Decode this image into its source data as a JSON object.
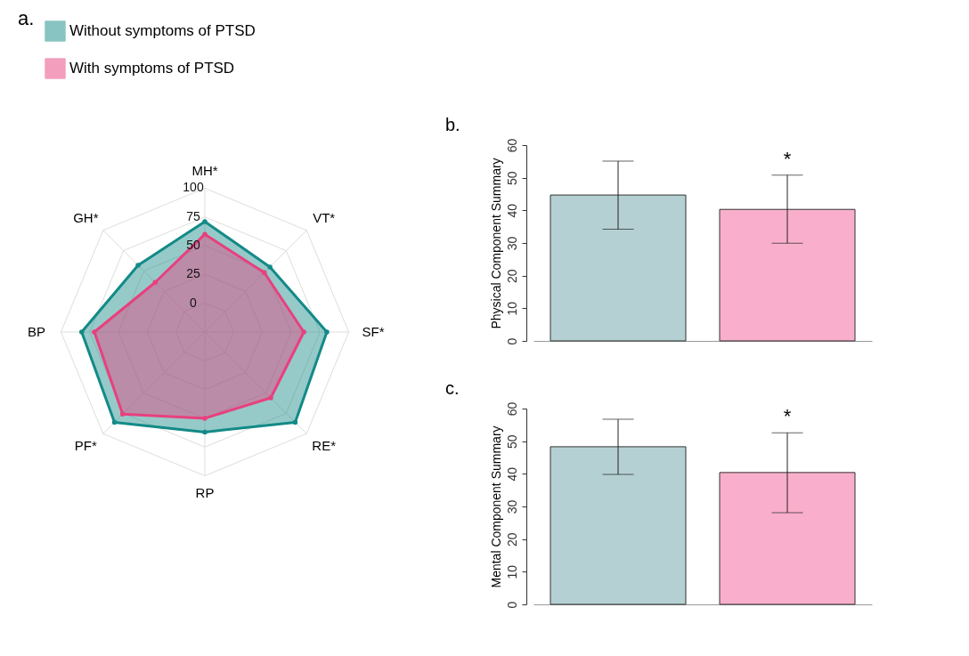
{
  "chart_data": [
    {
      "type": "radar",
      "title": "a.",
      "categories": [
        "MH*",
        "VT*",
        "SF*",
        "RE*",
        "RP",
        "PF*",
        "BP",
        "GH*"
      ],
      "ylim": [
        -25,
        100
      ],
      "yticks": [
        0,
        25,
        50,
        75,
        100
      ],
      "legend": "top left",
      "marker": "circle",
      "grid": true,
      "series": [
        {
          "name": "Without symptoms of PTSD",
          "color": "#138a87",
          "values": [
            71,
            55,
            81,
            86,
            62,
            86,
            82,
            57
          ]
        },
        {
          "name": "With symptoms of PTSD",
          "color": "#e8407e",
          "values": [
            60,
            48,
            61,
            56,
            50,
            76,
            71,
            36
          ]
        }
      ]
    },
    {
      "type": "bar",
      "title": "b.",
      "ylabel": "Physical Component Summary",
      "categories": [
        null,
        null
      ],
      "values": [
        44.7,
        40.3
      ],
      "colors": [
        "#b5d0d2",
        "#f9afcb"
      ],
      "errors": [
        [
          34.2,
          55.1
        ],
        [
          29.9,
          50.8
        ]
      ],
      "ylim": [
        0,
        60
      ],
      "yticks": [
        0,
        10,
        20,
        30,
        40,
        50,
        60
      ],
      "annotations": [
        "*"
      ]
    },
    {
      "type": "bar",
      "title": "c.",
      "ylabel": "Mental Component Summary",
      "categories": [
        null,
        null
      ],
      "values": [
        48.3,
        40.4
      ],
      "colors": [
        "#b5d0d2",
        "#f9afcb"
      ],
      "errors": [
        [
          39.8,
          56.7
        ],
        [
          28.1,
          52.6
        ]
      ],
      "ylim": [
        0,
        60
      ],
      "yticks": [
        0,
        10,
        20,
        30,
        40,
        50,
        60
      ],
      "annotations": [
        "*"
      ]
    }
  ]
}
